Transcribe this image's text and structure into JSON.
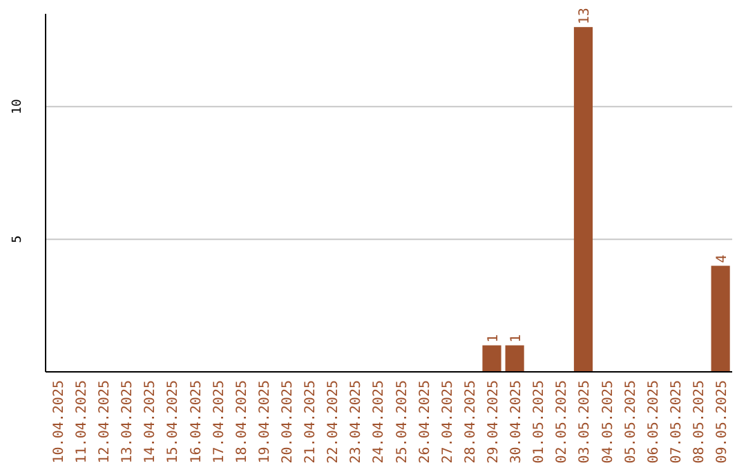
{
  "chart_data": {
    "type": "bar",
    "categories": [
      "10.04.2025",
      "11.04.2025",
      "12.04.2025",
      "13.04.2025",
      "14.04.2025",
      "15.04.2025",
      "16.04.2025",
      "17.04.2025",
      "18.04.2025",
      "19.04.2025",
      "20.04.2025",
      "21.04.2025",
      "22.04.2025",
      "23.04.2025",
      "24.04.2025",
      "25.04.2025",
      "26.04.2025",
      "27.04.2025",
      "28.04.2025",
      "29.04.2025",
      "30.04.2025",
      "01.05.2025",
      "02.05.2025",
      "03.05.2025",
      "04.05.2025",
      "05.05.2025",
      "06.05.2025",
      "07.05.2025",
      "08.05.2025",
      "09.05.2025"
    ],
    "values": [
      0,
      0,
      0,
      0,
      0,
      0,
      0,
      0,
      0,
      0,
      0,
      0,
      0,
      0,
      0,
      0,
      0,
      0,
      0,
      1,
      1,
      0,
      0,
      13,
      0,
      0,
      0,
      0,
      0,
      4
    ],
    "value_labels": [
      null,
      null,
      null,
      null,
      null,
      null,
      null,
      null,
      null,
      null,
      null,
      null,
      null,
      null,
      null,
      null,
      null,
      null,
      null,
      "1",
      "1",
      null,
      null,
      "13",
      null,
      null,
      null,
      null,
      null,
      "4"
    ],
    "color": "#a0522d",
    "ylim": [
      0,
      13.5
    ],
    "yticks": [
      5,
      10
    ],
    "grid": "y"
  }
}
